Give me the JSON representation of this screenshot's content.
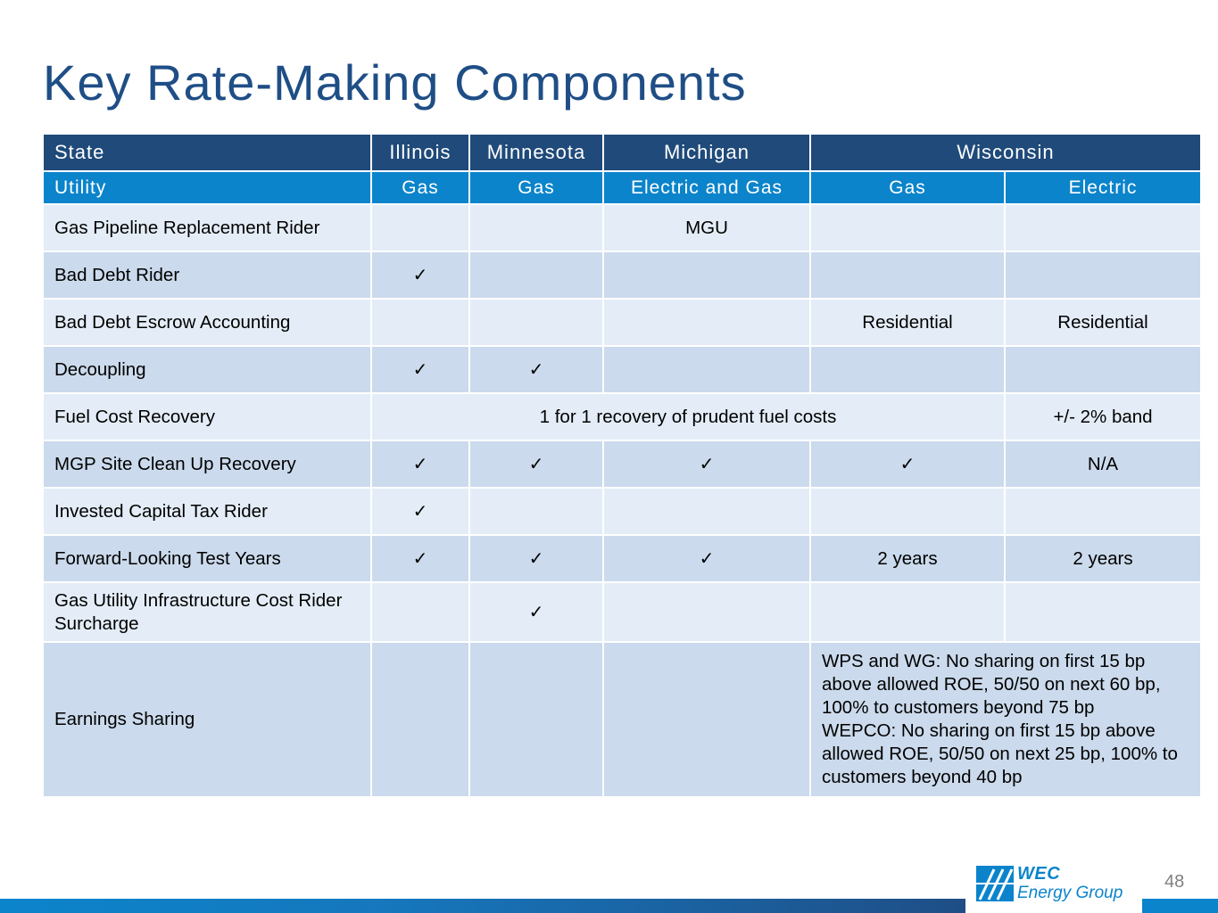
{
  "slide": {
    "title": "Key Rate-Making Components",
    "page_number": "48"
  },
  "logo": {
    "line1": "WEC",
    "line2": "Energy Group"
  },
  "table": {
    "state_row": {
      "label": "State",
      "illinois": "Illinois",
      "minnesota": "Minnesota",
      "michigan": "Michigan",
      "wisconsin": "Wisconsin"
    },
    "utility_row": {
      "label": "Utility",
      "illinois": "Gas",
      "minnesota": "Gas",
      "michigan": "Electric and Gas",
      "wisconsin_gas": "Gas",
      "wisconsin_electric": "Electric"
    },
    "check_mark": "✓",
    "rows": {
      "pipeline": {
        "label": "Gas Pipeline Replacement Rider",
        "michigan": "MGU"
      },
      "bad_debt": {
        "label": "Bad Debt Rider"
      },
      "escrow": {
        "label": "Bad Debt Escrow Accounting",
        "wisconsin_gas": "Residential",
        "wisconsin_electric": "Residential"
      },
      "decoupling": {
        "label": "Decoupling"
      },
      "fuel": {
        "label": "Fuel Cost Recovery",
        "span_text": "1 for 1 recovery of prudent fuel costs",
        "wisconsin_electric": "+/- 2% band"
      },
      "mgp": {
        "label": "MGP Site Clean Up Recovery",
        "wisconsin_electric": "N/A"
      },
      "invested": {
        "label": "Invested Capital Tax Rider"
      },
      "forward": {
        "label": "Forward-Looking Test Years",
        "wisconsin_gas": "2 years",
        "wisconsin_electric": "2 years"
      },
      "infrastructure": {
        "label": "Gas Utility Infrastructure Cost Rider Surcharge"
      },
      "earnings": {
        "label": "Earnings Sharing",
        "wisconsin_note_1": "WPS and WG: No sharing on first 15 bp above allowed ROE, 50/50 on next 60 bp, 100% to customers beyond 75 bp",
        "wisconsin_note_2": "WEPCO: No sharing on first 15 bp above allowed ROE, 50/50 on next 25 bp, 100% to customers beyond 40 bp"
      }
    }
  }
}
